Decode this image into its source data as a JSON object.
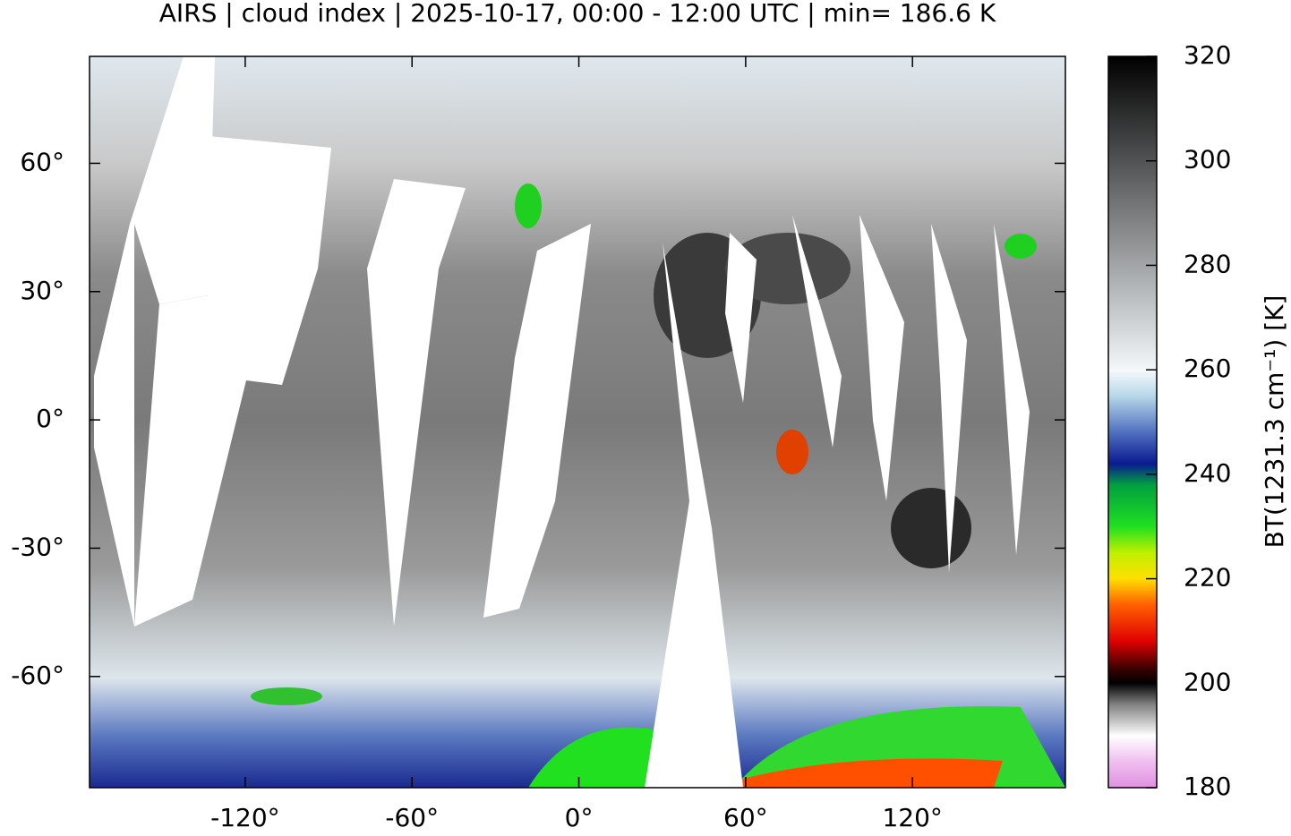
{
  "chart_data": {
    "type": "map",
    "title": "AIRS | cloud index | 2025-10-17, 00:00 - 12:00 UTC | min= 186.6 K",
    "xlim": [
      -176,
      175
    ],
    "ylim": [
      -86,
      85
    ],
    "xticks": [
      {
        "value": -120,
        "label": "-120°"
      },
      {
        "value": -60,
        "label": "-60°"
      },
      {
        "value": 0,
        "label": "0°"
      },
      {
        "value": 60,
        "label": "60°"
      },
      {
        "value": 120,
        "label": "120°"
      }
    ],
    "yticks": [
      {
        "value": -60,
        "label": "-60°"
      },
      {
        "value": -30,
        "label": "-30°"
      },
      {
        "value": 0,
        "label": "0°"
      },
      {
        "value": 30,
        "label": "30°"
      },
      {
        "value": 60,
        "label": "60°"
      }
    ],
    "colorbar": {
      "label": "BT(1231.3 cm⁻¹) [K]",
      "lim": [
        180,
        320
      ],
      "ticks": [
        180,
        200,
        220,
        240,
        260,
        280,
        300,
        320
      ]
    }
  }
}
